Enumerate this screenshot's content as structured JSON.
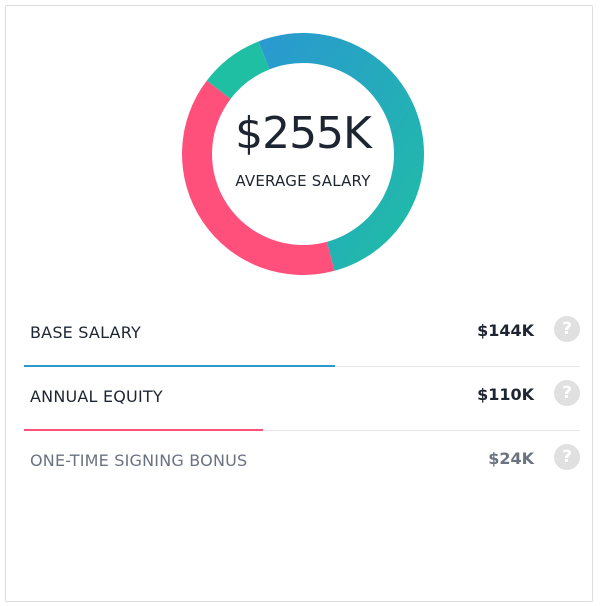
{
  "summary": {
    "total_value": "$255K",
    "total_label": "AVERAGE SALARY"
  },
  "chart_data": {
    "type": "pie",
    "variant": "donut",
    "categories": [
      "BASE SALARY",
      "ANNUAL EQUITY",
      "ONE-TIME SIGNING BONUS"
    ],
    "values": [
      144,
      110,
      24
    ],
    "colors": [
      "#2a98d1",
      "#ff4f7b",
      "#1fbfa4"
    ],
    "gradient_segment_colors": {
      "BASE SALARY": [
        "#2a98d1",
        "#1fbfa4"
      ]
    }
  },
  "breakdown": [
    {
      "label": "BASE SALARY",
      "value": "$144K",
      "color": "#2a98d1",
      "fraction": 0.56,
      "muted": false,
      "help_icon": "question-circle-icon"
    },
    {
      "label": "ANNUAL EQUITY",
      "value": "$110K",
      "color": "#ff4f7b",
      "fraction": 0.43,
      "muted": false,
      "help_icon": "question-circle-icon"
    },
    {
      "label": "ONE-TIME SIGNING BONUS",
      "value": "$24K",
      "color": "#1fbfa4",
      "fraction": 0.09,
      "muted": true,
      "help_icon": "question-circle-icon"
    }
  ]
}
